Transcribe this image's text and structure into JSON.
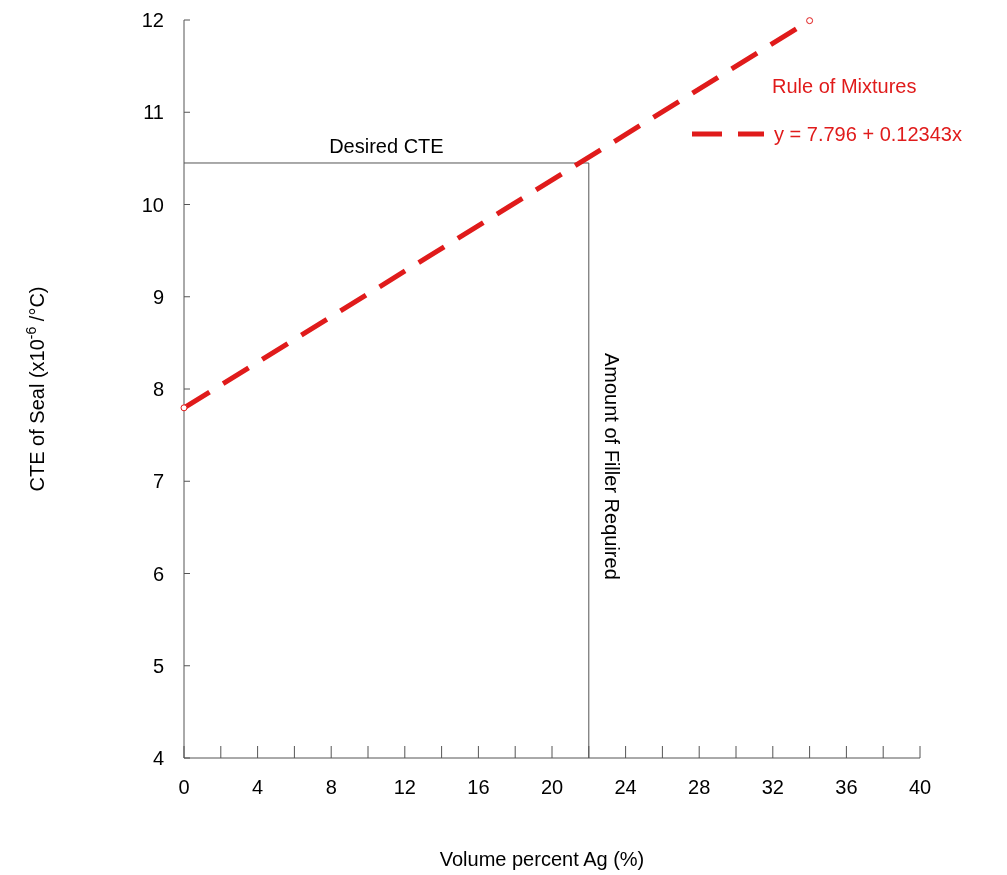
{
  "chart_data": {
    "type": "line",
    "xlabel": "Volume percent Ag (%)",
    "ylabel": "CTE of Seal (x10$^{-6}$ /°C)",
    "x": [
      0,
      34
    ],
    "series": [
      {
        "name": "y = 7.796 + 0.12343x",
        "color": "#e01b1b",
        "values": [
          7.796,
          11.993
        ]
      }
    ],
    "legend_title": "Rule of Mixtures",
    "legend": "top right",
    "marker": "circle",
    "line_style": "dashed",
    "xlim": [
      0,
      40
    ],
    "ylim": [
      4,
      12
    ],
    "xticks": [
      0,
      {
        "value": 2,
        "label": null
      },
      4,
      {
        "value": 6,
        "label": null
      },
      8,
      {
        "value": 10,
        "label": null
      },
      12,
      {
        "value": 14,
        "label": null
      },
      16,
      {
        "value": 18,
        "label": null
      },
      20,
      {
        "value": 22,
        "label": null
      },
      24,
      {
        "value": 26,
        "label": null
      },
      28,
      {
        "value": 30,
        "label": null
      },
      32,
      {
        "value": 34,
        "label": null
      },
      36,
      {
        "value": 38,
        "label": null
      },
      40
    ],
    "yticks": [
      4,
      5,
      6,
      7,
      8,
      9,
      10,
      11,
      12
    ],
    "ref_lines": [
      {
        "axis": "y",
        "value": 10.45,
        "label": "Desired CTE",
        "color": "#555555"
      },
      {
        "axis": "x",
        "value": 22,
        "label": "Amount of Filler Required",
        "color": "#555555"
      }
    ]
  }
}
